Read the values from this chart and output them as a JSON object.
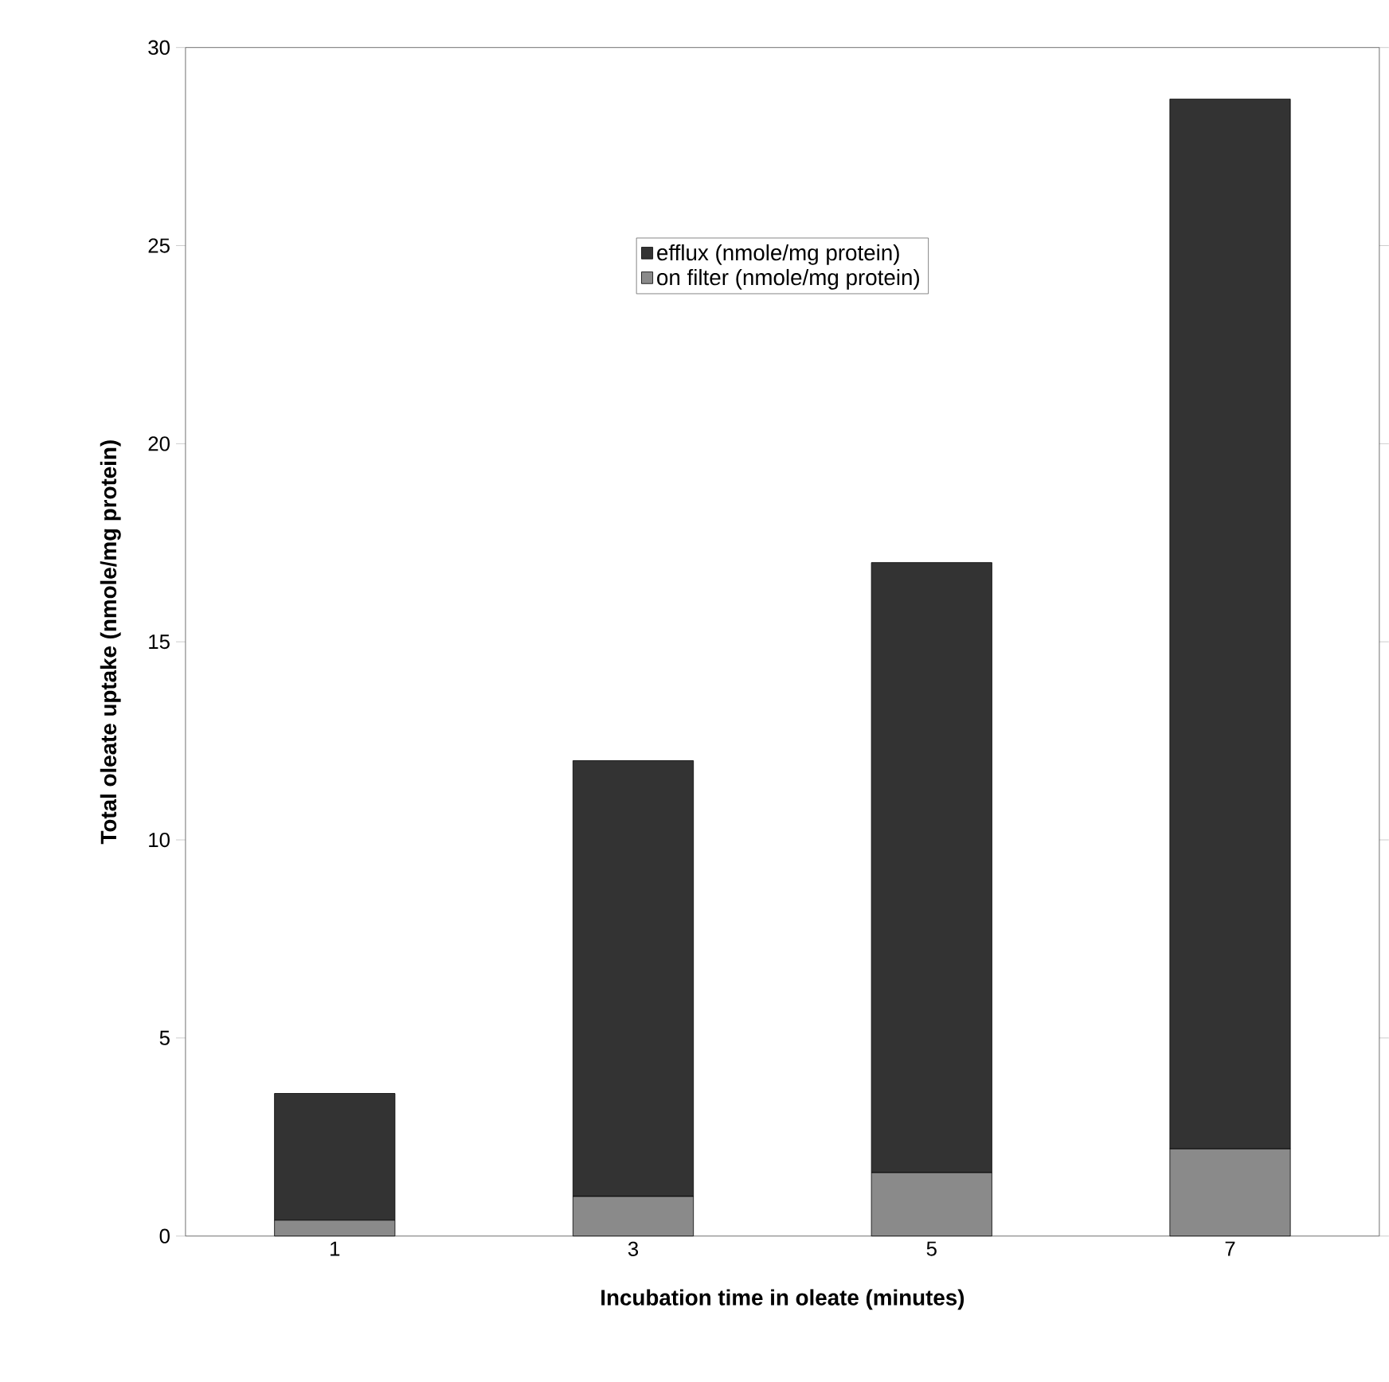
{
  "chart_data": {
    "type": "bar",
    "stacked": true,
    "xlabel": "Incubation time in oleate (minutes)",
    "ylabel": "Total oleate uptake (nmole/mg protein)",
    "categories": [
      "1",
      "3",
      "5",
      "7"
    ],
    "series": [
      {
        "name": "on filter (nmole/mg protein)",
        "color": "#8a8a8a",
        "values": [
          0.4,
          1.0,
          1.6,
          2.2
        ]
      },
      {
        "name": "efflux (nmole/mg protein)",
        "color": "#333333",
        "values": [
          3.2,
          11.0,
          15.4,
          26.5
        ]
      }
    ],
    "ylim": [
      0,
      30
    ],
    "yticks": [
      0,
      5,
      10,
      15,
      20,
      25,
      30
    ],
    "grid": false,
    "legend": "top"
  }
}
